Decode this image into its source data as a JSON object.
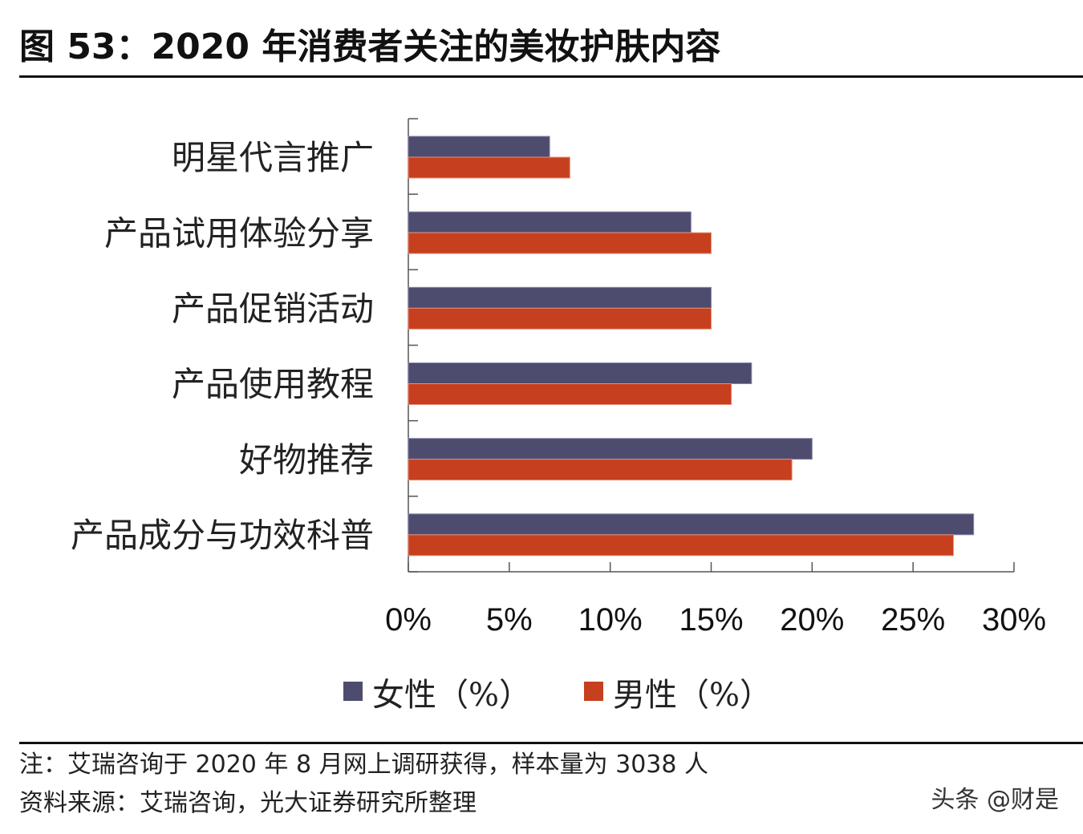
{
  "title": "图 53：2020 年消费者关注的美妆护肤内容",
  "chart_data": {
    "type": "bar",
    "orientation": "horizontal",
    "categories": [
      "明星代言推广",
      "产品试用体验分享",
      "产品促销活动",
      "产品使用教程",
      "好物推荐",
      "产品成分与功效科普"
    ],
    "series": [
      {
        "name": "女性（%）",
        "color": "#4d4c6f",
        "values": [
          7,
          14,
          15,
          17,
          20,
          28
        ]
      },
      {
        "name": "男性（%）",
        "color": "#c63f1e",
        "values": [
          8,
          15,
          15,
          16,
          19,
          27
        ]
      }
    ],
    "xlim": [
      0,
      30
    ],
    "xticks": [
      "0%",
      "5%",
      "10%",
      "15%",
      "20%",
      "25%",
      "30%"
    ],
    "grid": false,
    "legend_position": "bottom"
  },
  "notes": {
    "note": "注：艾瑞咨询于 2020 年 8 月网上调研获得，样本量为 3038 人",
    "source": "资料来源：艾瑞咨询，光大证券研究所整理"
  },
  "watermark": "头条 @财是"
}
